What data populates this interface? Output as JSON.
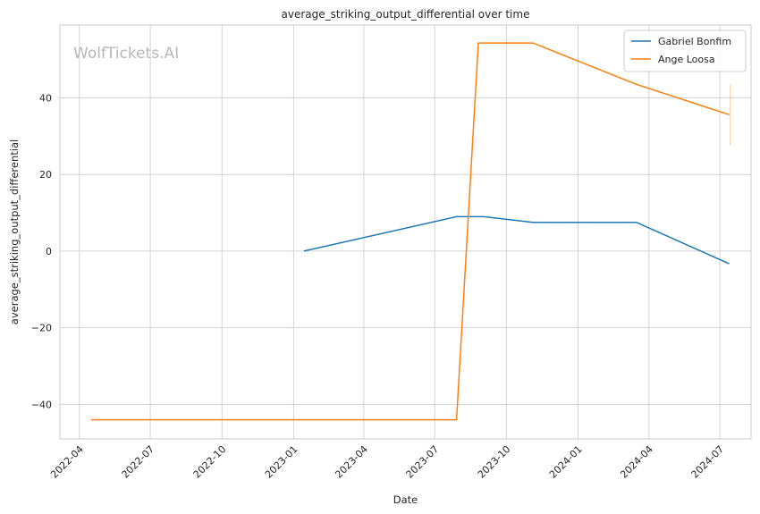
{
  "chart_data": {
    "type": "line",
    "title": "average_striking_output_differential over time",
    "xlabel": "Date",
    "ylabel": "average_striking_output_differential",
    "watermark": "WolfTickets.AI",
    "x_axis": {
      "range": [
        "2022-03-07",
        "2024-08-10"
      ],
      "ticks": [
        "2022-04",
        "2022-07",
        "2022-10",
        "2023-01",
        "2023-04",
        "2023-07",
        "2023-10",
        "2024-01",
        "2024-04",
        "2024-07"
      ],
      "tick_rotation_deg": 45
    },
    "y_axis": {
      "range": [
        -49,
        59
      ],
      "ticks": [
        -40,
        -20,
        0,
        20,
        40
      ]
    },
    "grid": true,
    "legend": {
      "placement": "top-right"
    },
    "series": [
      {
        "name": "Gabriel Bonfim",
        "color": "#1f77b4",
        "points": [
          {
            "x": "2023-01-14",
            "y": 0
          },
          {
            "x": "2023-07-29",
            "y": 9
          },
          {
            "x": "2023-09-02",
            "y": 9
          },
          {
            "x": "2023-11-04",
            "y": 7.5
          },
          {
            "x": "2024-03-16",
            "y": 7.5
          },
          {
            "x": "2024-07-13",
            "y": -3.3
          }
        ]
      },
      {
        "name": "Ange Loosa",
        "color": "#ff7f0e",
        "points": [
          {
            "x": "2022-04-16",
            "y": -44
          },
          {
            "x": "2023-07-29",
            "y": -44
          },
          {
            "x": "2023-08-26",
            "y": 54.3
          },
          {
            "x": "2023-11-04",
            "y": 54.3
          },
          {
            "x": "2024-03-16",
            "y": 43.5
          },
          {
            "x": "2024-07-13",
            "y": 35.6
          }
        ],
        "error_bar": {
          "x": "2024-07-13",
          "low": 27.5,
          "high": 43.5
        }
      }
    ]
  }
}
